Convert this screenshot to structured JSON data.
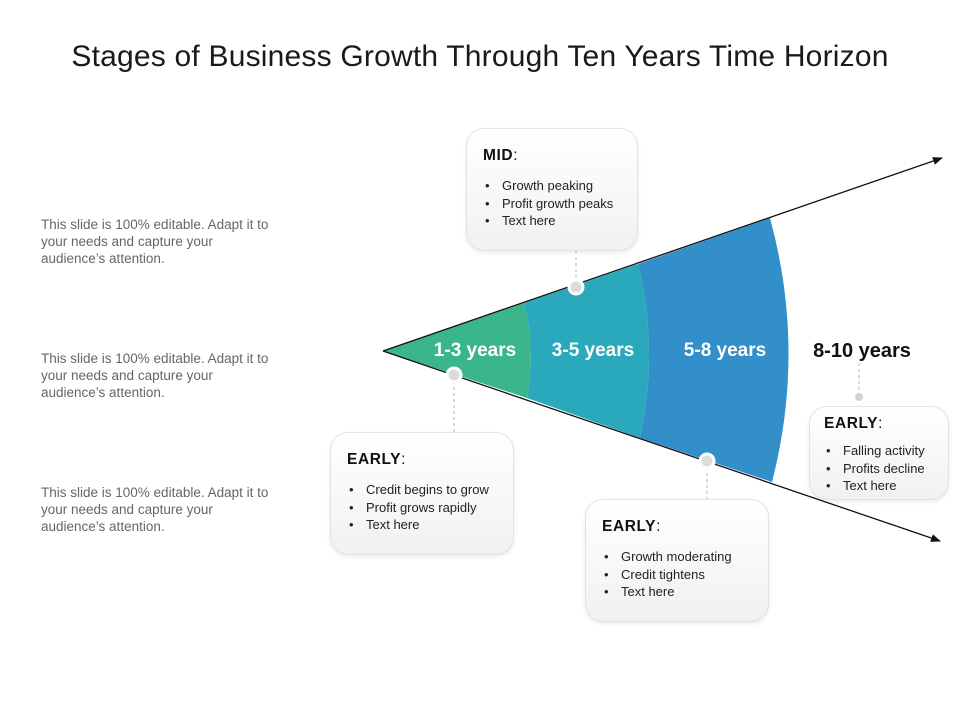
{
  "title": "Stages of Business Growth Through Ten Years Time Horizon",
  "side_notes": [
    "This slide is 100% editable. Adapt it to your needs and capture your audience’s attention.",
    "This slide is 100% editable. Adapt it to your needs and capture your audience’s attention.",
    "This slide is 100% editable. Adapt it to your needs and capture your audience’s attention."
  ],
  "stages": [
    {
      "label": "1-3 years",
      "color": "#3bb58a"
    },
    {
      "label": "3-5 years",
      "color": "#2aa9bd"
    },
    {
      "label": "5-8 years",
      "color": "#338fc9"
    },
    {
      "label": "8-10 years",
      "color": "#111111"
    }
  ],
  "cards": [
    {
      "heading": "MID",
      "colon": ":",
      "items": [
        "Growth peaking",
        "Profit growth peaks",
        "Text here"
      ]
    },
    {
      "heading": "EARLY",
      "colon": ":",
      "items": [
        "Credit begins to grow",
        "Profit grows rapidly",
        "Text here"
      ]
    },
    {
      "heading": "EARLY",
      "colon": ":",
      "items": [
        "Growth moderating",
        "Credit tightens",
        "Text here"
      ]
    },
    {
      "heading": "EARLY",
      "colon": ":",
      "items": [
        "Falling activity",
        "Profits decline",
        "Text here"
      ]
    }
  ]
}
